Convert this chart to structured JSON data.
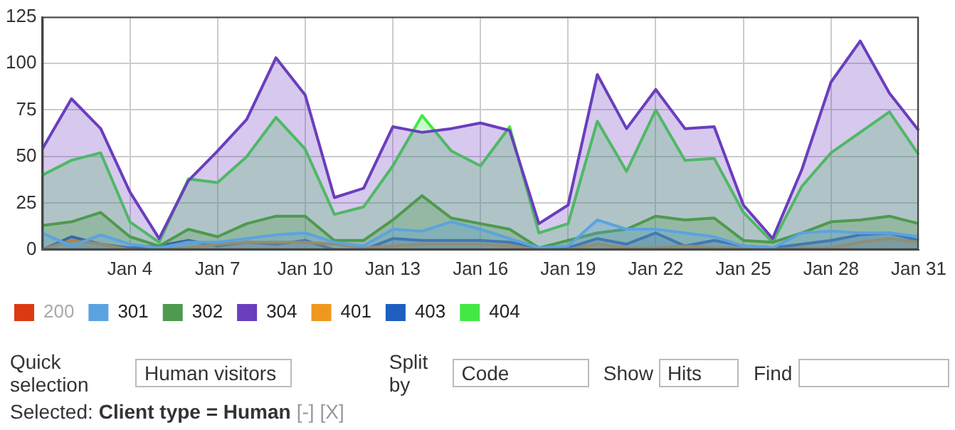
{
  "chart_data": {
    "type": "area",
    "categories": [
      null,
      null,
      null,
      "Jan 4",
      null,
      null,
      "Jan 7",
      null,
      null,
      "Jan 10",
      null,
      null,
      "Jan 13",
      null,
      null,
      "Jan 16",
      null,
      null,
      "Jan 19",
      null,
      null,
      "Jan 22",
      null,
      null,
      "Jan 25",
      null,
      null,
      "Jan 28",
      null,
      null,
      "Jan 31"
    ],
    "ylim": [
      0,
      125
    ],
    "yticks": [
      0,
      25,
      50,
      75,
      100,
      125
    ],
    "grid": true,
    "legend": "bottom",
    "marker": "none",
    "line_style": "solid",
    "series": [
      {
        "name": "200",
        "color": "#dc3912",
        "values": [
          null,
          null,
          null,
          null,
          null,
          null,
          null,
          null,
          null,
          null,
          null,
          null,
          null,
          null,
          null,
          null,
          null,
          null,
          null,
          null,
          null,
          null,
          null,
          null,
          null,
          null,
          null,
          null,
          null,
          null,
          null
        ]
      },
      {
        "name": "301",
        "color": "#5ba3e0",
        "values": [
          9,
          2,
          8,
          3,
          1,
          4,
          4,
          6,
          8,
          9,
          4,
          2,
          11,
          10,
          15,
          11,
          6,
          1,
          2,
          16,
          11,
          11,
          9,
          7,
          2,
          1,
          9,
          10,
          9,
          9,
          7
        ]
      },
      {
        "name": "302",
        "color": "#4e9a4e",
        "values": [
          13,
          15,
          20,
          7,
          2,
          11,
          7,
          14,
          18,
          18,
          5,
          5,
          16,
          29,
          17,
          14,
          11,
          1,
          5,
          9,
          11,
          18,
          16,
          17,
          5,
          4,
          9,
          15,
          16,
          18,
          14
        ]
      },
      {
        "name": "304",
        "color": "#6a3ebd",
        "values": [
          54,
          81,
          65,
          31,
          6,
          37,
          53,
          70,
          103,
          83,
          28,
          33,
          66,
          63,
          65,
          68,
          64,
          14,
          24,
          94,
          65,
          86,
          65,
          66,
          24,
          6,
          43,
          90,
          112,
          84,
          64
        ]
      },
      {
        "name": "401",
        "color": "#f0981e",
        "values": [
          0,
          5,
          3,
          0,
          0,
          1,
          3,
          4,
          4,
          4,
          3,
          1,
          2,
          3,
          3,
          3,
          2,
          0,
          0,
          3,
          1,
          1,
          2,
          1,
          1,
          0,
          1,
          1,
          4,
          6,
          4
        ]
      },
      {
        "name": "403",
        "color": "#1f5fbf",
        "values": [
          0,
          7,
          3,
          1,
          2,
          5,
          2,
          4,
          3,
          5,
          0,
          0,
          6,
          5,
          5,
          5,
          4,
          1,
          1,
          6,
          3,
          9,
          2,
          5,
          2,
          1,
          3,
          5,
          8,
          9,
          5
        ]
      },
      {
        "name": "404",
        "color": "#44e844",
        "values": [
          40,
          48,
          52,
          15,
          4,
          38,
          36,
          50,
          71,
          54,
          19,
          23,
          45,
          72,
          53,
          45,
          66,
          9,
          14,
          69,
          42,
          75,
          48,
          49,
          20,
          4,
          34,
          52,
          63,
          74,
          51
        ]
      }
    ],
    "annotations": [
      "Quick selection",
      "Human visitors",
      "Split by",
      "Code",
      "Show",
      "Hits",
      "Find",
      "Selected:",
      "Client type = Human",
      "[-]",
      "[X]"
    ]
  }
}
